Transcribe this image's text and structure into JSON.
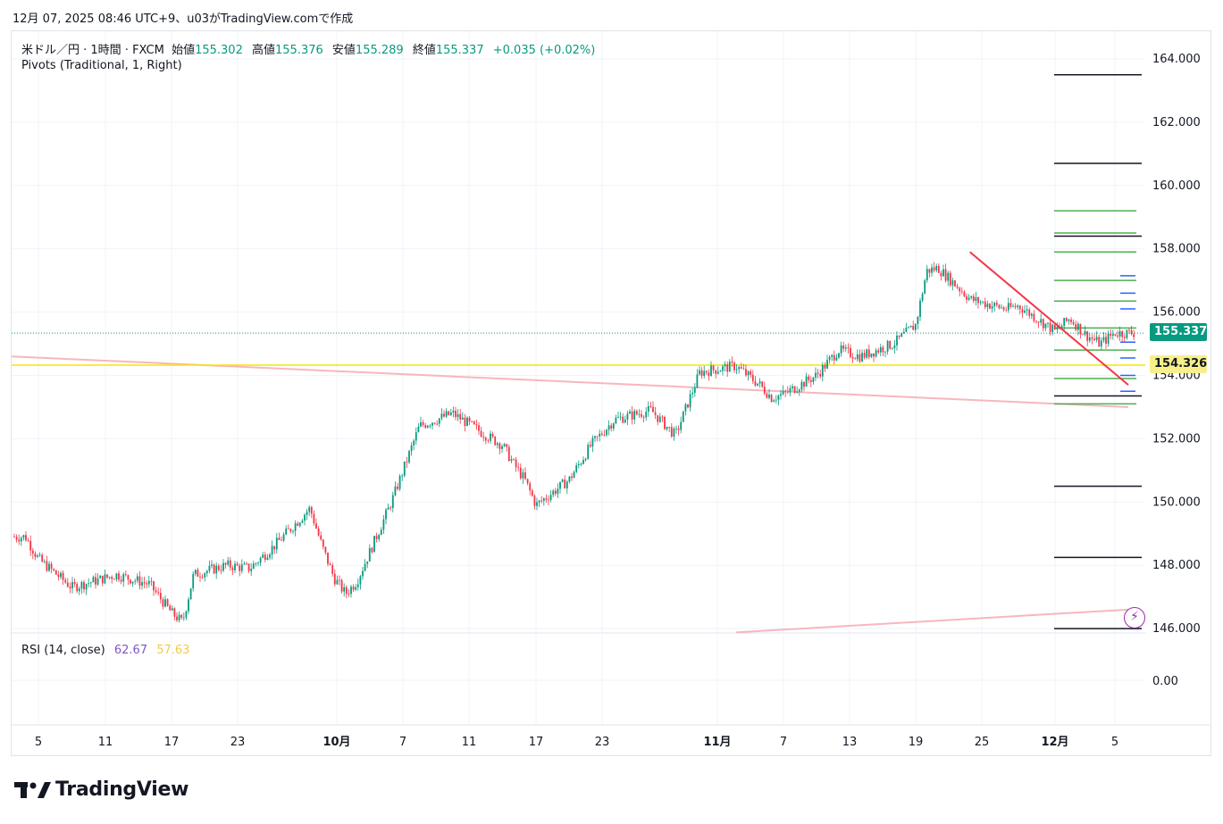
{
  "caption": "12月 07, 2025 08:46 UTC+9、u03がTradingView.comで作成",
  "legend": {
    "symbol": "米ドル／円 · 1時間 · FXCM",
    "open_label": "始値",
    "open": "155.302",
    "high_label": "高値",
    "high": "155.376",
    "low_label": "安値",
    "low": "155.289",
    "close_label": "終値",
    "close": "155.337",
    "change": "+0.035 (+0.02%)"
  },
  "pivots_label": "Pivots (Traditional, 1, Right)",
  "rsi": {
    "label": "RSI (14, close)",
    "value1": "62.67",
    "value2": "57.63"
  },
  "price_tags": {
    "last": "155.337",
    "level": "154.326"
  },
  "logo_text": "TradingView",
  "icons": {
    "flash": "flash-icon",
    "logo": "tradingview-logo-icon"
  },
  "colors": {
    "up": "#089981",
    "down": "#f23645",
    "trendline": "#f23645",
    "support": "#f7e600",
    "pivot_green": "#4caf50",
    "pivot_black": "#131722",
    "pivot_blue": "#2962ff",
    "channel": "#f8b6bd"
  },
  "chart_data": {
    "type": "candlestick",
    "timeframe": "1時間",
    "y_ticks": [
      "164.000",
      "162.000",
      "160.000",
      "158.000",
      "156.000",
      "154.000",
      "152.000",
      "150.000",
      "148.000",
      "146.000"
    ],
    "ylim": [
      145.88,
      165.0
    ],
    "rsi_ticks": [
      "0.00"
    ],
    "x_ticks": [
      "5",
      "11",
      "17",
      "23",
      "10月",
      "7",
      "11",
      "17",
      "23",
      "11月",
      "7",
      "13",
      "19",
      "25",
      "12月",
      "5"
    ],
    "price_path": [
      [
        "09-03",
        148.9
      ],
      [
        "09-05",
        148.2
      ],
      [
        "09-08",
        147.3
      ],
      [
        "09-10",
        147.5
      ],
      [
        "09-12",
        147.7
      ],
      [
        "09-15",
        147.4
      ],
      [
        "09-17",
        146.5
      ],
      [
        "09-18",
        146.2
      ],
      [
        "09-19",
        147.7
      ],
      [
        "09-22",
        148.0
      ],
      [
        "09-24",
        147.9
      ],
      [
        "09-26",
        148.6
      ],
      [
        "09-29",
        149.8
      ],
      [
        "09-30",
        148.6
      ],
      [
        "10-01",
        147.6
      ],
      [
        "10-02",
        147.1
      ],
      [
        "10-03",
        147.5
      ],
      [
        "10-06",
        150.0
      ],
      [
        "10-08",
        152.4
      ],
      [
        "10-10",
        152.8
      ],
      [
        "10-13",
        152.0
      ],
      [
        "10-14",
        151.8
      ],
      [
        "10-15",
        151.2
      ],
      [
        "10-16",
        150.7
      ],
      [
        "10-17",
        149.9
      ],
      [
        "10-20",
        150.7
      ],
      [
        "10-22",
        151.8
      ],
      [
        "10-24",
        152.6
      ],
      [
        "10-27",
        152.9
      ],
      [
        "10-29",
        152.1
      ],
      [
        "10-31",
        154.1
      ],
      [
        "11-03",
        154.3
      ],
      [
        "11-05",
        153.7
      ],
      [
        "11-06",
        153.3
      ],
      [
        "11-07",
        153.4
      ],
      [
        "11-10",
        154.0
      ],
      [
        "11-12",
        154.8
      ],
      [
        "11-14",
        154.6
      ],
      [
        "11-17",
        155.0
      ],
      [
        "11-19",
        155.6
      ],
      [
        "11-20",
        157.3
      ],
      [
        "11-21",
        157.4
      ],
      [
        "11-24",
        156.4
      ],
      [
        "11-26",
        156.2
      ],
      [
        "11-27",
        156.1
      ],
      [
        "11-28",
        156.2
      ],
      [
        "12-01",
        155.4
      ],
      [
        "12-02",
        155.8
      ],
      [
        "12-03",
        155.3
      ],
      [
        "12-04",
        155.0
      ],
      [
        "12-05",
        155.34
      ]
    ],
    "horizontal_line": 154.326,
    "last_price": 155.337,
    "trendline": [
      [
        "11-21",
        157.9
      ],
      [
        "12-06",
        153.7
      ]
    ],
    "channel_upper": [
      [
        "09-01",
        154.6
      ],
      [
        "12-06",
        153.0
      ]
    ],
    "channel_lower": [
      [
        "10-23",
        145.88
      ],
      [
        "12-06",
        146.6
      ]
    ],
    "pivots": {
      "black": [
        163.5,
        160.7,
        158.4,
        153.35,
        150.5,
        148.25,
        146.0
      ],
      "green": [
        159.2,
        158.5,
        157.9,
        157.0,
        156.35,
        155.5,
        154.8,
        153.9,
        153.1
      ],
      "blue": [
        157.15,
        156.6,
        156.1,
        155.05,
        154.55,
        154.0,
        153.5
      ]
    }
  }
}
